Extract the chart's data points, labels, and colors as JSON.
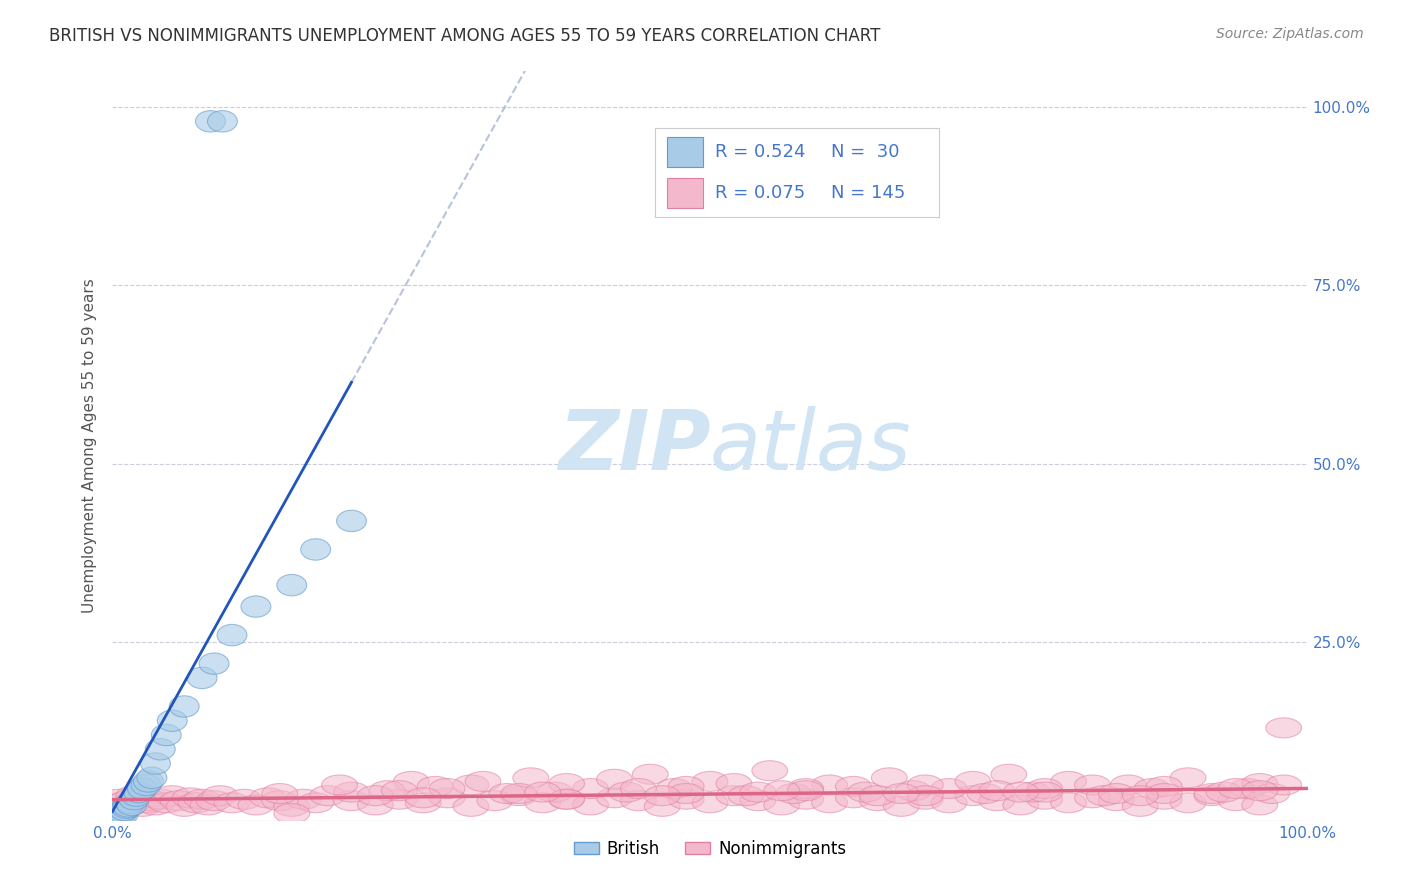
{
  "title": "BRITISH VS NONIMMIGRANTS UNEMPLOYMENT AMONG AGES 55 TO 59 YEARS CORRELATION CHART",
  "source": "Source: ZipAtlas.com",
  "ylabel": "Unemployment Among Ages 55 to 59 years",
  "xlim": [
    0,
    1.0
  ],
  "ylim": [
    0,
    1.05
  ],
  "ytick_positions": [
    0.25,
    0.5,
    0.75,
    1.0
  ],
  "ytick_labels": [
    "25.0%",
    "50.0%",
    "75.0%",
    "100.0%"
  ],
  "xtick_labels": [
    "0.0%",
    "100.0%"
  ],
  "british_color_fill": "#A8CCE8",
  "british_color_edge": "#6699CC",
  "nonimm_color_fill": "#F4B8CC",
  "nonimm_color_edge": "#E080A0",
  "british_line_color": "#2255BB",
  "nonimm_line_color": "#DD6688",
  "dash_color": "#99AACC",
  "watermark_color": "#D0E4F4",
  "title_color": "#333333",
  "source_color": "#888888",
  "axis_label_color": "#555555",
  "tick_color": "#4477CC",
  "grid_color": "#CCCCDD",
  "background_color": "#FFFFFF",
  "british_x": [
    0.005,
    0.007,
    0.008,
    0.009,
    0.01,
    0.012,
    0.013,
    0.015,
    0.016,
    0.018,
    0.02,
    0.022,
    0.025,
    0.028,
    0.03,
    0.033,
    0.036,
    0.04,
    0.045,
    0.05,
    0.06,
    0.075,
    0.085,
    0.1,
    0.12,
    0.15,
    0.17,
    0.2,
    0.082,
    0.092
  ],
  "british_y": [
    0.01,
    0.008,
    0.012,
    0.009,
    0.015,
    0.018,
    0.02,
    0.025,
    0.022,
    0.03,
    0.035,
    0.04,
    0.045,
    0.05,
    0.055,
    0.06,
    0.08,
    0.1,
    0.12,
    0.14,
    0.16,
    0.2,
    0.22,
    0.26,
    0.3,
    0.33,
    0.38,
    0.42,
    0.98,
    0.98
  ],
  "nonimm_x": [
    0.005,
    0.008,
    0.012,
    0.015,
    0.018,
    0.022,
    0.025,
    0.028,
    0.03,
    0.033,
    0.036,
    0.04,
    0.045,
    0.05,
    0.055,
    0.06,
    0.065,
    0.07,
    0.075,
    0.08,
    0.085,
    0.09,
    0.1,
    0.11,
    0.12,
    0.13,
    0.14,
    0.15,
    0.16,
    0.17,
    0.18,
    0.2,
    0.22,
    0.24,
    0.26,
    0.28,
    0.3,
    0.32,
    0.34,
    0.36,
    0.38,
    0.4,
    0.42,
    0.44,
    0.46,
    0.48,
    0.5,
    0.52,
    0.54,
    0.56,
    0.58,
    0.6,
    0.62,
    0.64,
    0.66,
    0.68,
    0.7,
    0.72,
    0.74,
    0.76,
    0.78,
    0.8,
    0.82,
    0.84,
    0.86,
    0.88,
    0.9,
    0.92,
    0.94,
    0.96,
    0.98,
    0.2,
    0.25,
    0.3,
    0.35,
    0.4,
    0.45,
    0.5,
    0.55,
    0.6,
    0.65,
    0.7,
    0.75,
    0.8,
    0.85,
    0.9,
    0.95,
    0.14,
    0.19,
    0.23,
    0.27,
    0.31,
    0.37,
    0.42,
    0.47,
    0.52,
    0.57,
    0.62,
    0.67,
    0.72,
    0.77,
    0.82,
    0.87,
    0.92,
    0.96,
    0.22,
    0.28,
    0.33,
    0.38,
    0.43,
    0.48,
    0.53,
    0.58,
    0.63,
    0.68,
    0.73,
    0.78,
    0.83,
    0.88,
    0.93,
    0.97,
    0.15,
    0.24,
    0.34,
    0.44,
    0.54,
    0.64,
    0.74,
    0.84,
    0.94,
    0.38,
    0.48,
    0.58,
    0.68,
    0.78,
    0.88,
    0.98,
    0.26,
    0.36,
    0.46,
    0.56,
    0.66,
    0.76,
    0.86,
    0.96
  ],
  "nonimm_y": [
    0.03,
    0.025,
    0.028,
    0.022,
    0.035,
    0.03,
    0.02,
    0.032,
    0.025,
    0.028,
    0.022,
    0.03,
    0.025,
    0.035,
    0.028,
    0.02,
    0.032,
    0.025,
    0.03,
    0.022,
    0.028,
    0.035,
    0.025,
    0.03,
    0.022,
    0.032,
    0.028,
    0.02,
    0.03,
    0.025,
    0.035,
    0.028,
    0.022,
    0.03,
    0.025,
    0.032,
    0.02,
    0.028,
    0.035,
    0.025,
    0.03,
    0.022,
    0.032,
    0.028,
    0.02,
    0.03,
    0.025,
    0.035,
    0.028,
    0.022,
    0.03,
    0.025,
    0.032,
    0.028,
    0.02,
    0.03,
    0.025,
    0.035,
    0.028,
    0.022,
    0.03,
    0.025,
    0.032,
    0.028,
    0.02,
    0.03,
    0.025,
    0.035,
    0.028,
    0.022,
    0.13,
    0.04,
    0.055,
    0.05,
    0.06,
    0.045,
    0.065,
    0.055,
    0.07,
    0.05,
    0.06,
    0.045,
    0.065,
    0.055,
    0.05,
    0.06,
    0.045,
    0.038,
    0.05,
    0.042,
    0.048,
    0.055,
    0.04,
    0.058,
    0.045,
    0.052,
    0.038,
    0.048,
    0.042,
    0.055,
    0.04,
    0.05,
    0.045,
    0.038,
    0.052,
    0.035,
    0.045,
    0.038,
    0.052,
    0.04,
    0.048,
    0.035,
    0.045,
    0.04,
    0.05,
    0.038,
    0.045,
    0.035,
    0.048,
    0.04,
    0.038,
    0.01,
    0.042,
    0.038,
    0.045,
    0.04,
    0.035,
    0.042,
    0.038,
    0.045,
    0.03,
    0.038,
    0.042,
    0.035,
    0.04,
    0.038,
    0.05,
    0.032,
    0.04,
    0.035,
    0.042,
    0.038,
    0.04,
    0.035,
    0.042
  ]
}
